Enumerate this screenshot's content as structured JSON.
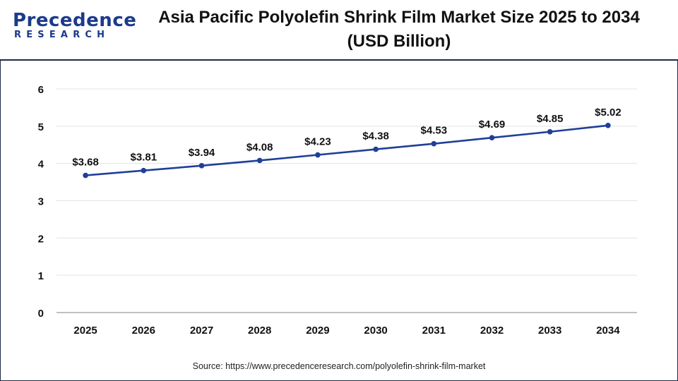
{
  "header": {
    "logo_word": "Precedence",
    "logo_sub": "RESEARCH",
    "title_line1": "Asia Pacific Polyolefin Shrink Film Market Size 2025 to 2034",
    "title_line2": "(USD Billion)"
  },
  "colors": {
    "line": "#1f3f99",
    "marker": "#1f3f99",
    "grid": "#e3e3e3",
    "axis": "#9a9a9a",
    "brand": "#1b3a8c",
    "text": "#111111"
  },
  "chart_data": {
    "type": "line",
    "title": "Asia Pacific Polyolefin Shrink Film Market Size 2025 to 2034 (USD Billion)",
    "categories": [
      "2025",
      "2026",
      "2027",
      "2028",
      "2029",
      "2030",
      "2031",
      "2032",
      "2033",
      "2034"
    ],
    "series": [
      {
        "values": [
          3.68,
          3.81,
          3.94,
          4.08,
          4.23,
          4.38,
          4.53,
          4.69,
          4.85,
          5.02
        ],
        "labels": [
          "$3.68",
          "$3.81",
          "$3.94",
          "$4.08",
          "$4.23",
          "$4.38",
          "$4.53",
          "$4.69",
          "$4.85",
          "$5.02"
        ]
      }
    ],
    "y_ticks": [
      "0",
      "1",
      "2",
      "3",
      "4",
      "5",
      "6"
    ],
    "ylim": [
      0,
      6
    ],
    "grid": true,
    "xlabel": "",
    "ylabel": ""
  },
  "footer": {
    "source": "Source: https://www.precedenceresearch.com/polyolefin-shrink-film-market"
  }
}
